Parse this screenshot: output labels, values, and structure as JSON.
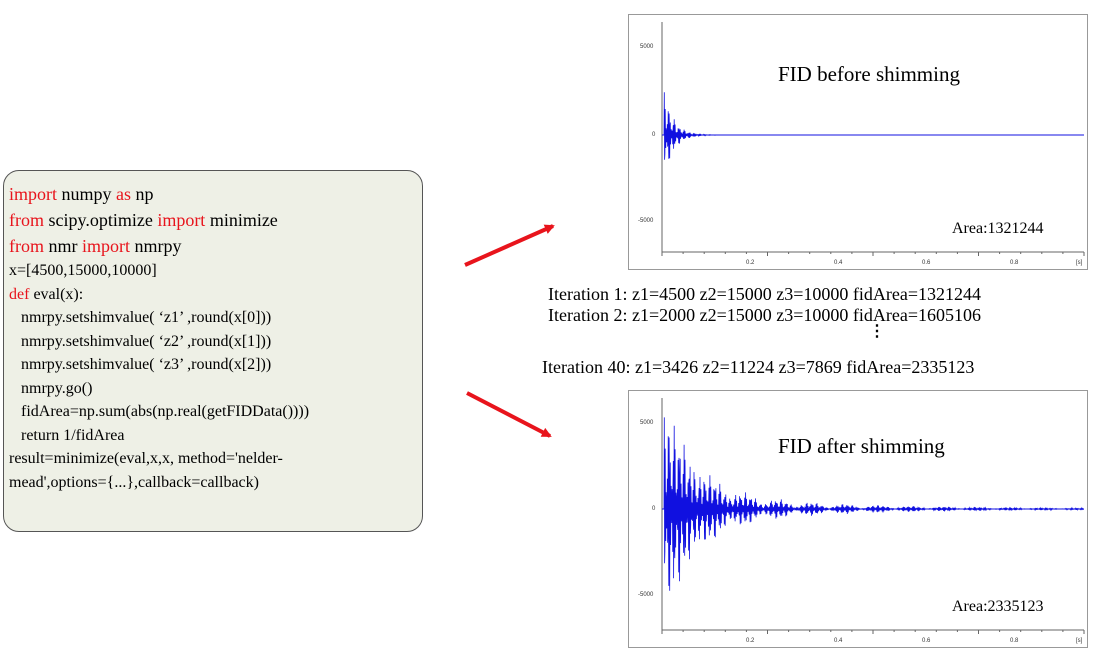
{
  "code": {
    "lines": [
      {
        "parts": [
          {
            "t": "import",
            "kw": true
          },
          {
            "t": " numpy "
          },
          {
            "t": "as",
            "kw": true
          },
          {
            "t": " np"
          }
        ],
        "big": true
      },
      {
        "parts": [
          {
            "t": "from",
            "kw": true
          },
          {
            "t": " scipy.optimize "
          },
          {
            "t": "import",
            "kw": true
          },
          {
            "t": " minimize"
          }
        ],
        "big": true
      },
      {
        "parts": [
          {
            "t": "from",
            "kw": true
          },
          {
            "t": " nmr "
          },
          {
            "t": "import",
            "kw": true
          },
          {
            "t": " nmrpy"
          }
        ],
        "big": true
      },
      {
        "parts": [
          {
            "t": "x=[4500,15000,10000]"
          }
        ]
      },
      {
        "parts": [
          {
            "t": "def",
            "kw": true
          },
          {
            "t": " eval(x):"
          }
        ]
      },
      {
        "parts": [
          {
            "t": "   nmrpy.setshimvalue( ‘z1’ ,round(x[0]))"
          }
        ]
      },
      {
        "parts": [
          {
            "t": "   nmrpy.setshimvalue( ‘z2’ ,round(x[1]))"
          }
        ]
      },
      {
        "parts": [
          {
            "t": "   nmrpy.setshimvalue( ‘z3’ ,round(x[2]))"
          }
        ]
      },
      {
        "parts": [
          {
            "t": "   nmrpy.go()"
          }
        ]
      },
      {
        "parts": [
          {
            "t": "   fidArea=np.sum(abs(np.real(getFIDData())))"
          }
        ]
      },
      {
        "parts": [
          {
            "t": "   return 1/fidArea"
          }
        ]
      },
      {
        "parts": [
          {
            "t": "result=minimize(eval,x,x, method='nelder-"
          }
        ]
      },
      {
        "parts": [
          {
            "t": "mead',options={...},callback=callback)"
          }
        ]
      }
    ]
  },
  "plots": {
    "before": {
      "title": "FID before shimming",
      "area": "Area:1321244",
      "yticks": [
        "5000",
        "0",
        "-5000"
      ],
      "xticks": [
        "0.2",
        "0.4",
        "0.6",
        "0.8",
        "[s]"
      ]
    },
    "after": {
      "title": "FID after shimming",
      "area": "Area:2335123",
      "yticks": [
        "5000",
        "0",
        "-5000"
      ],
      "xticks": [
        "0.2",
        "0.4",
        "0.6",
        "0.8",
        "[s]"
      ]
    }
  },
  "iterations": {
    "line1": "Iteration 1: z1=4500 z2=15000 z3=10000 fidArea=1321244",
    "line2": "Iteration 2: z1=2000 z2=15000 z3=10000 fidArea=1605106",
    "line40": "Iteration 40: z1=3426 z2=11224 z3=7869 fidArea=2335123"
  },
  "colors": {
    "keyword": "#e8141c",
    "arrow": "#e8141c",
    "signal": "#1010e0",
    "code_bg": "#eef0e6"
  }
}
